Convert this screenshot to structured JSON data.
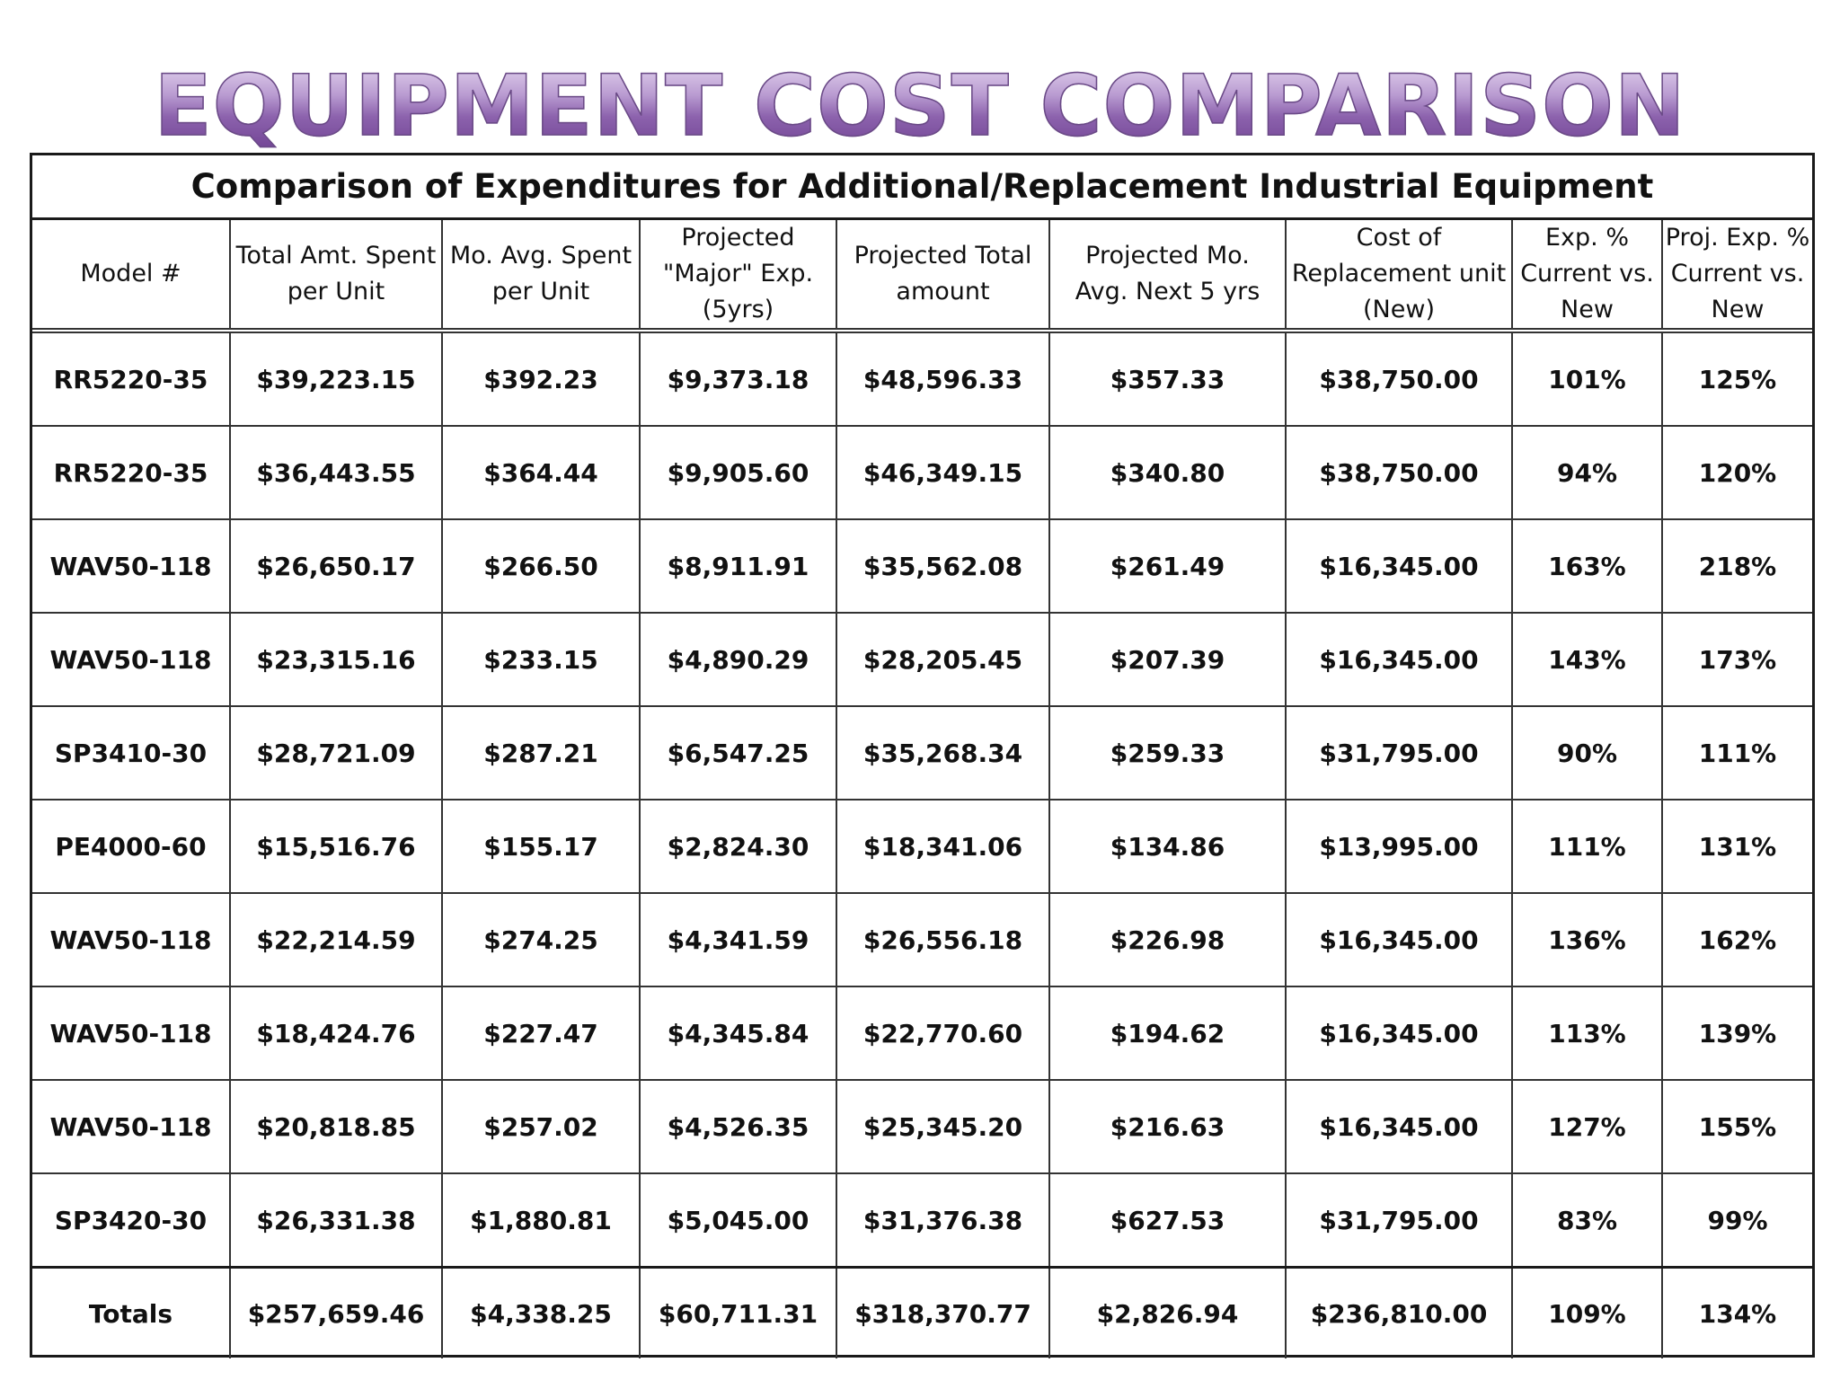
{
  "page": {
    "title": "EQUIPMENT COST COMPARISON"
  },
  "table": {
    "caption": "Comparison of Expenditures for Additional/Replacement Industrial Equipment",
    "columns": [
      "Model #",
      "Total Amt. Spent\nper Unit",
      "Mo. Avg. Spent\nper Unit",
      "Projected\n\"Major\" Exp.\n(5yrs)",
      "Projected Total\namount",
      "Projected Mo.\nAvg. Next 5 yrs",
      "Cost of\nReplacement unit\n(New)",
      "Exp. %\nCurrent vs.\nNew",
      "Proj. Exp. %\nCurrent vs.\nNew"
    ],
    "rows": [
      [
        "RR5220-35",
        "$39,223.15",
        "$392.23",
        "$9,373.18",
        "$48,596.33",
        "$357.33",
        "$38,750.00",
        "101%",
        "125%"
      ],
      [
        "RR5220-35",
        "$36,443.55",
        "$364.44",
        "$9,905.60",
        "$46,349.15",
        "$340.80",
        "$38,750.00",
        "94%",
        "120%"
      ],
      [
        "WAV50-118",
        "$26,650.17",
        "$266.50",
        "$8,911.91",
        "$35,562.08",
        "$261.49",
        "$16,345.00",
        "163%",
        "218%"
      ],
      [
        "WAV50-118",
        "$23,315.16",
        "$233.15",
        "$4,890.29",
        "$28,205.45",
        "$207.39",
        "$16,345.00",
        "143%",
        "173%"
      ],
      [
        "SP3410-30",
        "$28,721.09",
        "$287.21",
        "$6,547.25",
        "$35,268.34",
        "$259.33",
        "$31,795.00",
        "90%",
        "111%"
      ],
      [
        "PE4000-60",
        "$15,516.76",
        "$155.17",
        "$2,824.30",
        "$18,341.06",
        "$134.86",
        "$13,995.00",
        "111%",
        "131%"
      ],
      [
        "WAV50-118",
        "$22,214.59",
        "$274.25",
        "$4,341.59",
        "$26,556.18",
        "$226.98",
        "$16,345.00",
        "136%",
        "162%"
      ],
      [
        "WAV50-118",
        "$18,424.76",
        "$227.47",
        "$4,345.84",
        "$22,770.60",
        "$194.62",
        "$16,345.00",
        "113%",
        "139%"
      ],
      [
        "WAV50-118",
        "$20,818.85",
        "$257.02",
        "$4,526.35",
        "$25,345.20",
        "$216.63",
        "$16,345.00",
        "127%",
        "155%"
      ],
      [
        "SP3420-30",
        "$26,331.38",
        "$1,880.81",
        "$5,045.00",
        "$31,376.38",
        "$627.53",
        "$31,795.00",
        "83%",
        "99%"
      ]
    ],
    "totals": [
      "Totals",
      "$257,659.46",
      "$4,338.25",
      "$60,711.31",
      "$318,370.77",
      "$2,826.94",
      "$236,810.00",
      "109%",
      "134%"
    ]
  }
}
